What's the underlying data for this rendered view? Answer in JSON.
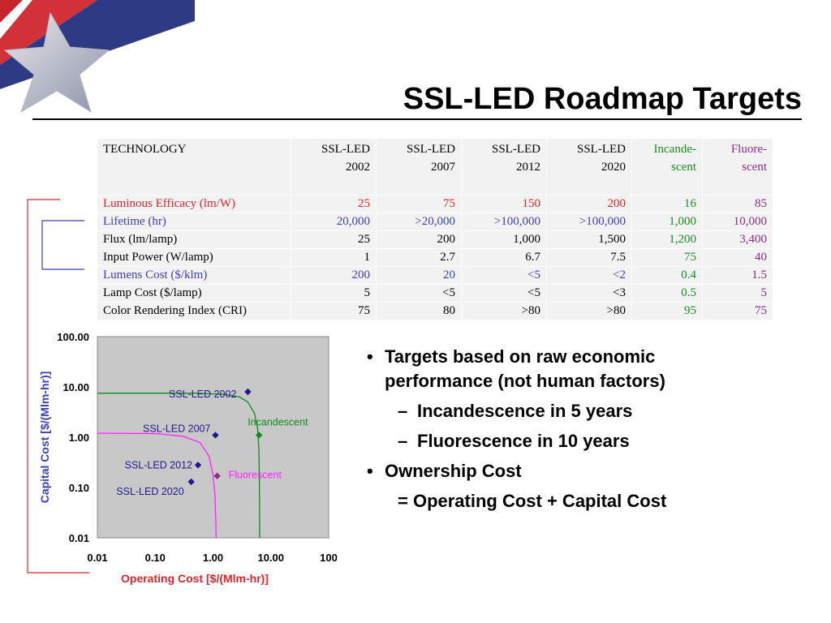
{
  "title": "SSL-LED Roadmap Targets",
  "colors": {
    "red": "#e3232b",
    "blue": "#3b3fb5",
    "green": "#1b8b1f",
    "purple": "#8e2b8b",
    "navy": "#1f1a8c",
    "magenta": "#ff22ff",
    "chart_green": "#0d8c1a"
  },
  "table": {
    "header": {
      "technology": "TECHNOLOGY",
      "columns": [
        {
          "line1": "SSL-LED",
          "line2": "2002"
        },
        {
          "line1": "SSL-LED",
          "line2": "2007"
        },
        {
          "line1": "SSL-LED",
          "line2": "2012"
        },
        {
          "line1": "SSL-LED",
          "line2": "2020"
        },
        {
          "line1": "Incande-",
          "line2": "scent"
        },
        {
          "line1": "Fluore-",
          "line2": "scent"
        }
      ]
    },
    "rows": [
      {
        "label": "Luminous Efficacy (lm/W)",
        "values": [
          "25",
          "75",
          "150",
          "200",
          "16",
          "85"
        ]
      },
      {
        "label": "Lifetime (hr)",
        "values": [
          "20,000",
          ">20,000",
          ">100,000",
          ">100,000",
          "1,000",
          "10,000"
        ]
      },
      {
        "label": "Flux (lm/lamp)",
        "values": [
          "25",
          "200",
          "1,000",
          "1,500",
          "1,200",
          "3,400"
        ]
      },
      {
        "label": "Input Power (W/lamp)",
        "values": [
          "1",
          "2.7",
          "6.7",
          "7.5",
          "75",
          "40"
        ]
      },
      {
        "label": "Lumens Cost ($/klm)",
        "values": [
          "200",
          "20",
          "<5",
          "<2",
          "0.4",
          "1.5"
        ]
      },
      {
        "label": "Lamp Cost ($/lamp)",
        "values": [
          "5",
          "<5",
          "<5",
          "<3",
          "0.5",
          "5"
        ]
      },
      {
        "label": "Color Rendering Index (CRI)",
        "values": [
          "75",
          "80",
          ">80",
          ">80",
          "95",
          "75"
        ]
      }
    ]
  },
  "chart_data": {
    "type": "scatter",
    "xscale": "log",
    "yscale": "log",
    "xlabel": "Operating Cost [$/(Mlm-hr)]",
    "ylabel": "Capital Cost [$/(Mlm-hr)]",
    "xticks": [
      "0.01",
      "0.10",
      "1.00",
      "10.00",
      "100"
    ],
    "yticks": [
      "100.00",
      "10.00",
      "1.00",
      "0.10",
      "0.01"
    ],
    "xlim": [
      0.01,
      100
    ],
    "ylim": [
      0.01,
      100
    ],
    "points": [
      {
        "label": "SSL-LED 2002",
        "x": 4.0,
        "y": 8.0
      },
      {
        "label": "SSL-LED 2007",
        "x": 1.1,
        "y": 1.1
      },
      {
        "label": "SSL-LED 2012",
        "x": 0.55,
        "y": 0.28
      },
      {
        "label": "SSL-LED 2020",
        "x": 0.42,
        "y": 0.13
      },
      {
        "label": "Incandescent",
        "x": 6.25,
        "y": 1.1
      },
      {
        "label": "Fluorescent",
        "x": 1.18,
        "y": 0.17
      }
    ],
    "curves": [
      {
        "name": "Incandescent",
        "points": [
          [
            0.01,
            7.5
          ],
          [
            0.5,
            7.5
          ],
          [
            1.6,
            7.1
          ],
          [
            2.9,
            6.3
          ],
          [
            4.0,
            5.0
          ],
          [
            5.2,
            3.0
          ],
          [
            5.9,
            1.5
          ],
          [
            6.2,
            0.6
          ],
          [
            6.35,
            0.1
          ],
          [
            6.4,
            0.01
          ]
        ]
      },
      {
        "name": "Fluorescent",
        "points": [
          [
            0.01,
            1.2
          ],
          [
            0.1,
            1.18
          ],
          [
            0.3,
            1.05
          ],
          [
            0.6,
            0.78
          ],
          [
            0.85,
            0.42
          ],
          [
            1.0,
            0.18
          ],
          [
            1.08,
            0.07
          ],
          [
            1.12,
            0.02
          ],
          [
            1.13,
            0.01
          ]
        ]
      }
    ],
    "grid": false
  },
  "bullets": [
    {
      "level": 1,
      "marker": "•",
      "text": "Targets based on raw economic"
    },
    {
      "level": 1,
      "marker": "",
      "text": "performance (not human factors)"
    },
    {
      "level": 2,
      "marker": "–",
      "text": "Incandescence in 5 years"
    },
    {
      "level": 2,
      "marker": "–",
      "text": "Fluorescence in 10 years"
    },
    {
      "level": 1,
      "marker": "•",
      "text": "Ownership Cost"
    },
    {
      "level": 1,
      "marker": "",
      "text": "= Operating Cost + Capital Cost"
    }
  ]
}
